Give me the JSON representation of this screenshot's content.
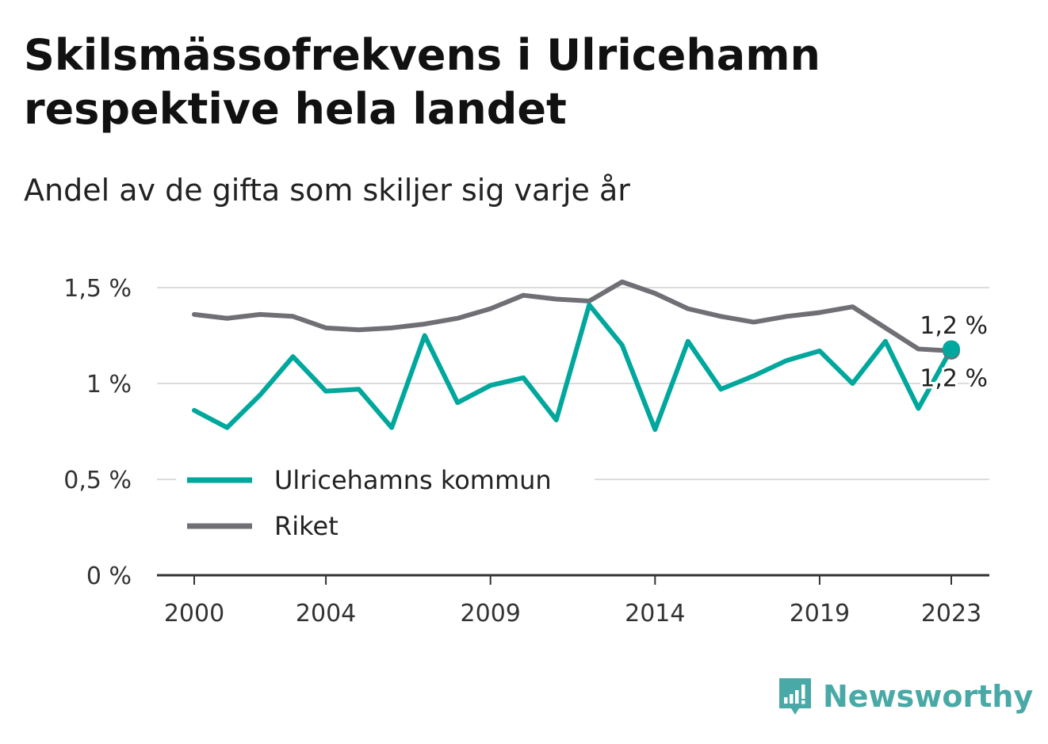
{
  "header": {
    "title": "Skilsmässofrekvens i Ulricehamn respektive hela landet",
    "subtitle": "Andel av de gifta som skiljer sig varje år"
  },
  "brand": {
    "name": "Newsworthy",
    "icon": "newsworthy-logo-icon",
    "color": "#48a9a6"
  },
  "chart_data": {
    "type": "line",
    "title": "Skilsmässofrekvens i Ulricehamn respektive hela landet",
    "subtitle": "Andel av de gifta som skiljer sig varje år",
    "xlabel": "",
    "ylabel": "",
    "x": [
      2000,
      2001,
      2002,
      2003,
      2004,
      2005,
      2006,
      2007,
      2008,
      2009,
      2010,
      2011,
      2012,
      2013,
      2014,
      2015,
      2016,
      2017,
      2018,
      2019,
      2020,
      2021,
      2022,
      2023
    ],
    "x_ticks": [
      "2000",
      "2004",
      "2009",
      "2014",
      "2019",
      "2023"
    ],
    "y_ticks": [
      "0 %",
      "0,5 %",
      "1 %",
      "1,5 %"
    ],
    "y_tick_values": [
      0,
      0.5,
      1,
      1.5
    ],
    "ylim": [
      0,
      1.5
    ],
    "grid": true,
    "legend_position": "bottom-left",
    "series": [
      {
        "name": "Ulricehamns kommun",
        "color": "#00a79d",
        "values": [
          0.86,
          0.77,
          0.94,
          1.14,
          0.96,
          0.97,
          0.77,
          1.25,
          0.9,
          0.99,
          1.03,
          0.81,
          1.41,
          1.2,
          0.76,
          1.22,
          0.97,
          1.04,
          1.12,
          1.17,
          1.0,
          1.22,
          0.87,
          1.18
        ],
        "end_label": "1,2 %"
      },
      {
        "name": "Riket",
        "color": "#706f75",
        "values": [
          1.36,
          1.34,
          1.36,
          1.35,
          1.29,
          1.28,
          1.29,
          1.31,
          1.34,
          1.39,
          1.46,
          1.44,
          1.43,
          1.53,
          1.47,
          1.39,
          1.35,
          1.32,
          1.35,
          1.37,
          1.4,
          1.29,
          1.18,
          1.17
        ],
        "end_label": "1,2 %"
      }
    ]
  }
}
